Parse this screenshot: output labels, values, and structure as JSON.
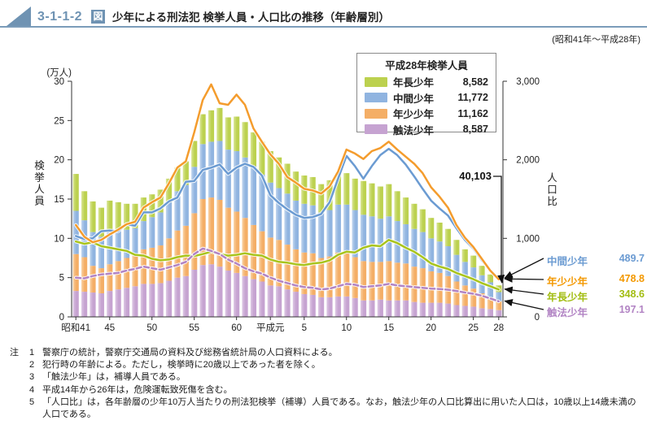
{
  "header": {
    "fig_no": "3-1-1-2",
    "fig_box": "図",
    "title": "少年による刑法犯 検挙人員・人口比の推移（年齢層別）",
    "period": "(昭和41年～平成28年)"
  },
  "legend": {
    "title": "平成28年検挙人員",
    "items": [
      {
        "label": "年長少年",
        "value": "8,582",
        "color": "#bcd14f"
      },
      {
        "label": "中間少年",
        "value": "11,772",
        "color": "#90b4e0"
      },
      {
        "label": "年少少年",
        "value": "11,162",
        "color": "#f4ae66"
      },
      {
        "label": "触法少年",
        "value": "8,587",
        "color": "#c6a3d1"
      }
    ]
  },
  "axes": {
    "left_unit": "(万人)",
    "left_label": "検挙人員",
    "right_label": "人口比"
  },
  "annotation": {
    "total_2016": "40,103"
  },
  "end_labels": [
    {
      "label": "中間少年",
      "value": "489.7",
      "color": "#6b9bd2"
    },
    {
      "label": "年少少年",
      "value": "478.8",
      "color": "#f39800"
    },
    {
      "label": "年長少年",
      "value": "348.6",
      "color": "#a2bd12"
    },
    {
      "label": "触法少年",
      "value": "197.1",
      "color": "#b284c4"
    }
  ],
  "chart_data": {
    "type": "stacked-bar+line",
    "title": "少年による刑法犯 検挙人員・人口比の推移（年齢層別）",
    "x_range": "昭和41年(1966)〜平成28年(2016), 51年分",
    "left_ylabel": "検挙人員(万人)",
    "right_ylabel": "人口比(各年齢層の少年10万人当たり)",
    "left_ylim": [
      0,
      30
    ],
    "right_ylim": [
      0,
      3000
    ],
    "left_ticks": [
      "0",
      "5",
      "10",
      "15",
      "20",
      "25",
      "30"
    ],
    "right_ticks": [
      "0",
      "1,000",
      "2,000",
      "3,000"
    ],
    "x_ticks": [
      {
        "label": "昭和41",
        "index": 0
      },
      {
        "label": "45",
        "index": 4
      },
      {
        "label": "50",
        "index": 9
      },
      {
        "label": "55",
        "index": 14
      },
      {
        "label": "60",
        "index": 19
      },
      {
        "label": "平成元",
        "index": 23
      },
      {
        "label": "5",
        "index": 27
      },
      {
        "label": "10",
        "index": 32
      },
      {
        "label": "15",
        "index": 37
      },
      {
        "label": "20",
        "index": 42
      },
      {
        "label": "25",
        "index": 47
      },
      {
        "label": "28",
        "index": 50
      }
    ],
    "bar_unit": "万人",
    "bar_series": [
      {
        "name": "触法少年",
        "color": "#c6a3d1",
        "color_light": "#ddc8e4",
        "values": [
          3.3,
          3.2,
          3.1,
          3.0,
          3.3,
          3.5,
          3.7,
          3.9,
          4.2,
          4.2,
          4.3,
          4.6,
          5.0,
          5.2,
          6.0,
          6.6,
          6.7,
          6.4,
          5.9,
          5.6,
          5.2,
          4.8,
          4.5,
          4.0,
          3.9,
          3.5,
          3.2,
          2.9,
          2.8,
          2.5,
          2.5,
          2.6,
          2.6,
          2.4,
          2.1,
          2.1,
          2.2,
          2.1,
          2.1,
          2.1,
          1.9,
          1.8,
          1.8,
          1.8,
          1.7,
          1.5,
          1.4,
          1.3,
          1.1,
          1.0,
          0.8587
        ]
      },
      {
        "name": "年少少年",
        "color": "#f4ae66",
        "color_light": "#f9d3a6",
        "values": [
          4.7,
          4.4,
          3.4,
          3.2,
          3.4,
          3.6,
          3.8,
          3.9,
          4.4,
          4.6,
          4.8,
          5.4,
          6.0,
          6.4,
          7.2,
          8.4,
          8.5,
          8.5,
          8.0,
          7.8,
          7.4,
          6.9,
          6.4,
          6.1,
          5.9,
          5.7,
          5.4,
          5.3,
          5.3,
          5.0,
          5.2,
          5.6,
          5.6,
          5.2,
          5.0,
          4.9,
          4.8,
          5.0,
          4.8,
          4.7,
          4.5,
          4.4,
          4.0,
          3.8,
          3.5,
          3.0,
          2.6,
          2.3,
          1.9,
          1.5,
          1.1162
        ]
      },
      {
        "name": "中間少年",
        "color": "#90b4e0",
        "color_light": "#c0d5ee",
        "values": [
          5.5,
          4.7,
          4.3,
          4.0,
          4.1,
          3.9,
          3.6,
          3.5,
          3.6,
          3.9,
          4.2,
          4.6,
          5.0,
          5.2,
          5.9,
          7.0,
          7.1,
          7.5,
          7.4,
          7.7,
          7.7,
          7.5,
          7.2,
          7.0,
          6.6,
          6.5,
          6.2,
          6.2,
          6.1,
          5.8,
          5.9,
          6.1,
          6.1,
          6.0,
          5.9,
          5.8,
          5.5,
          5.7,
          5.3,
          5.0,
          4.8,
          4.6,
          4.2,
          4.0,
          3.8,
          3.4,
          3.0,
          2.7,
          2.3,
          1.9,
          1.1772
        ]
      },
      {
        "name": "年長少年",
        "color": "#bcd14f",
        "color_light": "#d9e596",
        "values": [
          4.7,
          3.7,
          3.9,
          3.7,
          4.0,
          3.6,
          3.3,
          3.1,
          3.0,
          2.9,
          2.9,
          3.0,
          3.0,
          3.0,
          3.3,
          3.8,
          4.0,
          4.2,
          4.1,
          4.4,
          4.5,
          4.3,
          4.2,
          4.0,
          3.9,
          3.8,
          3.7,
          3.6,
          3.6,
          3.6,
          3.8,
          4.0,
          4.0,
          4.0,
          4.3,
          4.2,
          4.1,
          4.1,
          3.8,
          3.4,
          3.2,
          2.9,
          2.6,
          2.4,
          2.2,
          1.9,
          1.6,
          1.5,
          1.2,
          1.0,
          0.8582
        ]
      }
    ],
    "line_series": [
      {
        "name": "年長少年",
        "color": "#a9c41c",
        "dashed": false,
        "end_value": 348.6,
        "values": [
          960,
          930,
          950,
          900,
          880,
          860,
          840,
          790,
          780,
          740,
          720,
          730,
          760,
          780,
          775,
          800,
          830,
          800,
          780,
          790,
          810,
          790,
          780,
          730,
          700,
          690,
          670,
          660,
          680,
          690,
          720,
          790,
          830,
          820,
          880,
          910,
          900,
          980,
          940,
          880,
          830,
          760,
          680,
          640,
          610,
          560,
          520,
          480,
          430,
          390,
          348.6
        ]
      },
      {
        "name": "触法少年",
        "color": "#b284c4",
        "dashed": true,
        "end_value": 197.1,
        "values": [
          500,
          490,
          520,
          540,
          550,
          560,
          590,
          610,
          640,
          620,
          600,
          630,
          660,
          700,
          800,
          870,
          840,
          800,
          730,
          680,
          620,
          580,
          550,
          500,
          460,
          430,
          400,
          380,
          370,
          350,
          360,
          390,
          420,
          410,
          380,
          390,
          400,
          420,
          400,
          390,
          380,
          370,
          360,
          355,
          345,
          330,
          310,
          295,
          270,
          235,
          197.1
        ]
      },
      {
        "name": "中間少年",
        "color": "#6b9bd2",
        "dashed": false,
        "end_value": 489.7,
        "values": [
          1030,
          990,
          1000,
          1090,
          1100,
          1090,
          1180,
          1160,
          1330,
          1330,
          1380,
          1470,
          1520,
          1720,
          1730,
          1870,
          1900,
          1940,
          1820,
          1900,
          1950,
          1910,
          1800,
          1550,
          1450,
          1370,
          1300,
          1260,
          1270,
          1310,
          1460,
          1760,
          2050,
          1920,
          1760,
          1920,
          2060,
          2140,
          2060,
          1940,
          1790,
          1630,
          1480,
          1380,
          1290,
          1130,
          980,
          870,
          720,
          590,
          489.7
        ]
      },
      {
        "name": "年少少年",
        "color": "#f49c2d",
        "dashed": false,
        "end_value": 478.8,
        "values": [
          1170,
          1020,
          950,
          980,
          1050,
          1110,
          1180,
          1210,
          1390,
          1460,
          1520,
          1700,
          1900,
          1980,
          2350,
          2760,
          2960,
          2720,
          2700,
          2830,
          2700,
          2400,
          2230,
          2070,
          1950,
          1780,
          1710,
          1630,
          1610,
          1570,
          1660,
          1850,
          2130,
          2080,
          2010,
          2110,
          2150,
          2230,
          2130,
          2040,
          1950,
          1830,
          1650,
          1530,
          1390,
          1170,
          1010,
          890,
          740,
          590,
          478.8
        ]
      }
    ],
    "annotation_2016_total": 40103
  },
  "notes": {
    "prefix": "注",
    "items": [
      {
        "no": "1",
        "text": "警察庁の統計，警察庁交通局の資料及び総務省統計局の人口資料による。"
      },
      {
        "no": "2",
        "text": "犯行時の年齢による。ただし，検挙時に20歳以上であった者を除く。"
      },
      {
        "no": "3",
        "text": "「触法少年」は，補導人員である。"
      },
      {
        "no": "4",
        "text": "平成14年から26年は，危険運転致死傷を含む。"
      },
      {
        "no": "5",
        "text": "「人口比」は，各年齢層の少年10万人当たりの刑法犯検挙（補導）人員である。なお，触法少年の人口比算出に用いた人口は，10歳以上14歳未満の人口である。"
      }
    ]
  }
}
